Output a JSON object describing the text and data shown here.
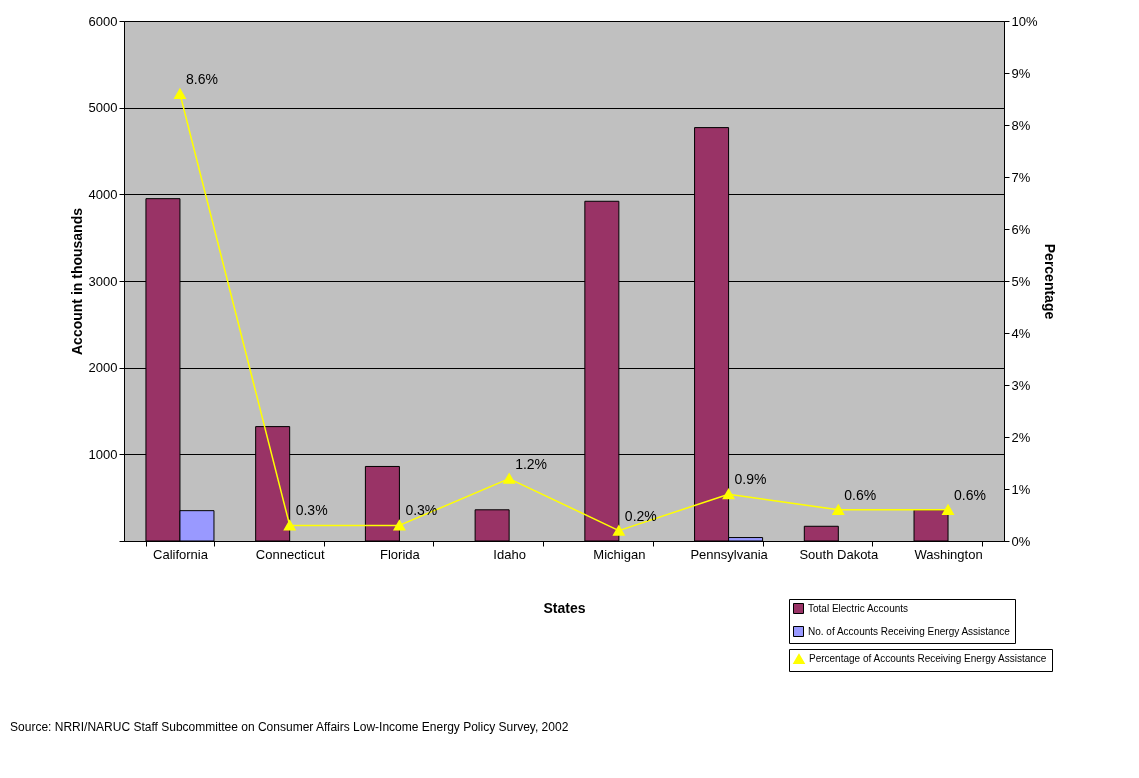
{
  "chart_data": {
    "type": "bar",
    "xlabel": "States",
    "ylabel": "Account in thousands",
    "y2label": "Percentage",
    "categories": [
      "California",
      "Connecticut",
      "Florida",
      "Idaho",
      "Michigan",
      "Pennsylvania",
      "South Dakota",
      "Washington"
    ],
    "series": [
      {
        "name": "Total Electric Accounts",
        "color": "#993366",
        "values": [
          3950,
          1320,
          860,
          360,
          3920,
          4770,
          170,
          360
        ]
      },
      {
        "name": "No. of Accounts Receiving Energy Assistance",
        "color": "#9999ff",
        "values": [
          350,
          null,
          null,
          null,
          null,
          40,
          null,
          null
        ]
      },
      {
        "name": "Percentage of Accounts Receiving Energy Assistance",
        "type": "line",
        "axis": "y2",
        "color": "#ffff00",
        "values": [
          8.6,
          0.3,
          0.3,
          1.2,
          0.2,
          0.9,
          0.6,
          0.6
        ],
        "value_labels": [
          "8.6%",
          "0.3%",
          "0.3%",
          "1.2%",
          "0.2%",
          "0.9%",
          "0.6%",
          "0.6%"
        ]
      }
    ],
    "ylim": [
      0,
      6000
    ],
    "yticks": [
      {
        "value": 0,
        "label": null
      },
      1000,
      2000,
      3000,
      4000,
      5000,
      6000
    ],
    "y2lim": [
      0,
      10
    ],
    "y2ticks": [
      {
        "value": 0,
        "label": "0%"
      },
      {
        "value": 1,
        "label": "1%"
      },
      {
        "value": 2,
        "label": "2%"
      },
      {
        "value": 3,
        "label": "3%"
      },
      {
        "value": 4,
        "label": "4%"
      },
      {
        "value": 5,
        "label": "5%"
      },
      {
        "value": 6,
        "label": "6%"
      },
      {
        "value": 7,
        "label": "7%"
      },
      {
        "value": 8,
        "label": "8%"
      },
      {
        "value": 9,
        "label": "9%"
      },
      {
        "value": 10,
        "label": "10%"
      }
    ],
    "grid": "y",
    "legend": "bottom right",
    "marker": "triangle",
    "annotations": [
      "Source: NRRI/NARUC Staff Subcommittee on Consumer Affairs Low-Income Energy Policy Survey, 2002"
    ]
  }
}
